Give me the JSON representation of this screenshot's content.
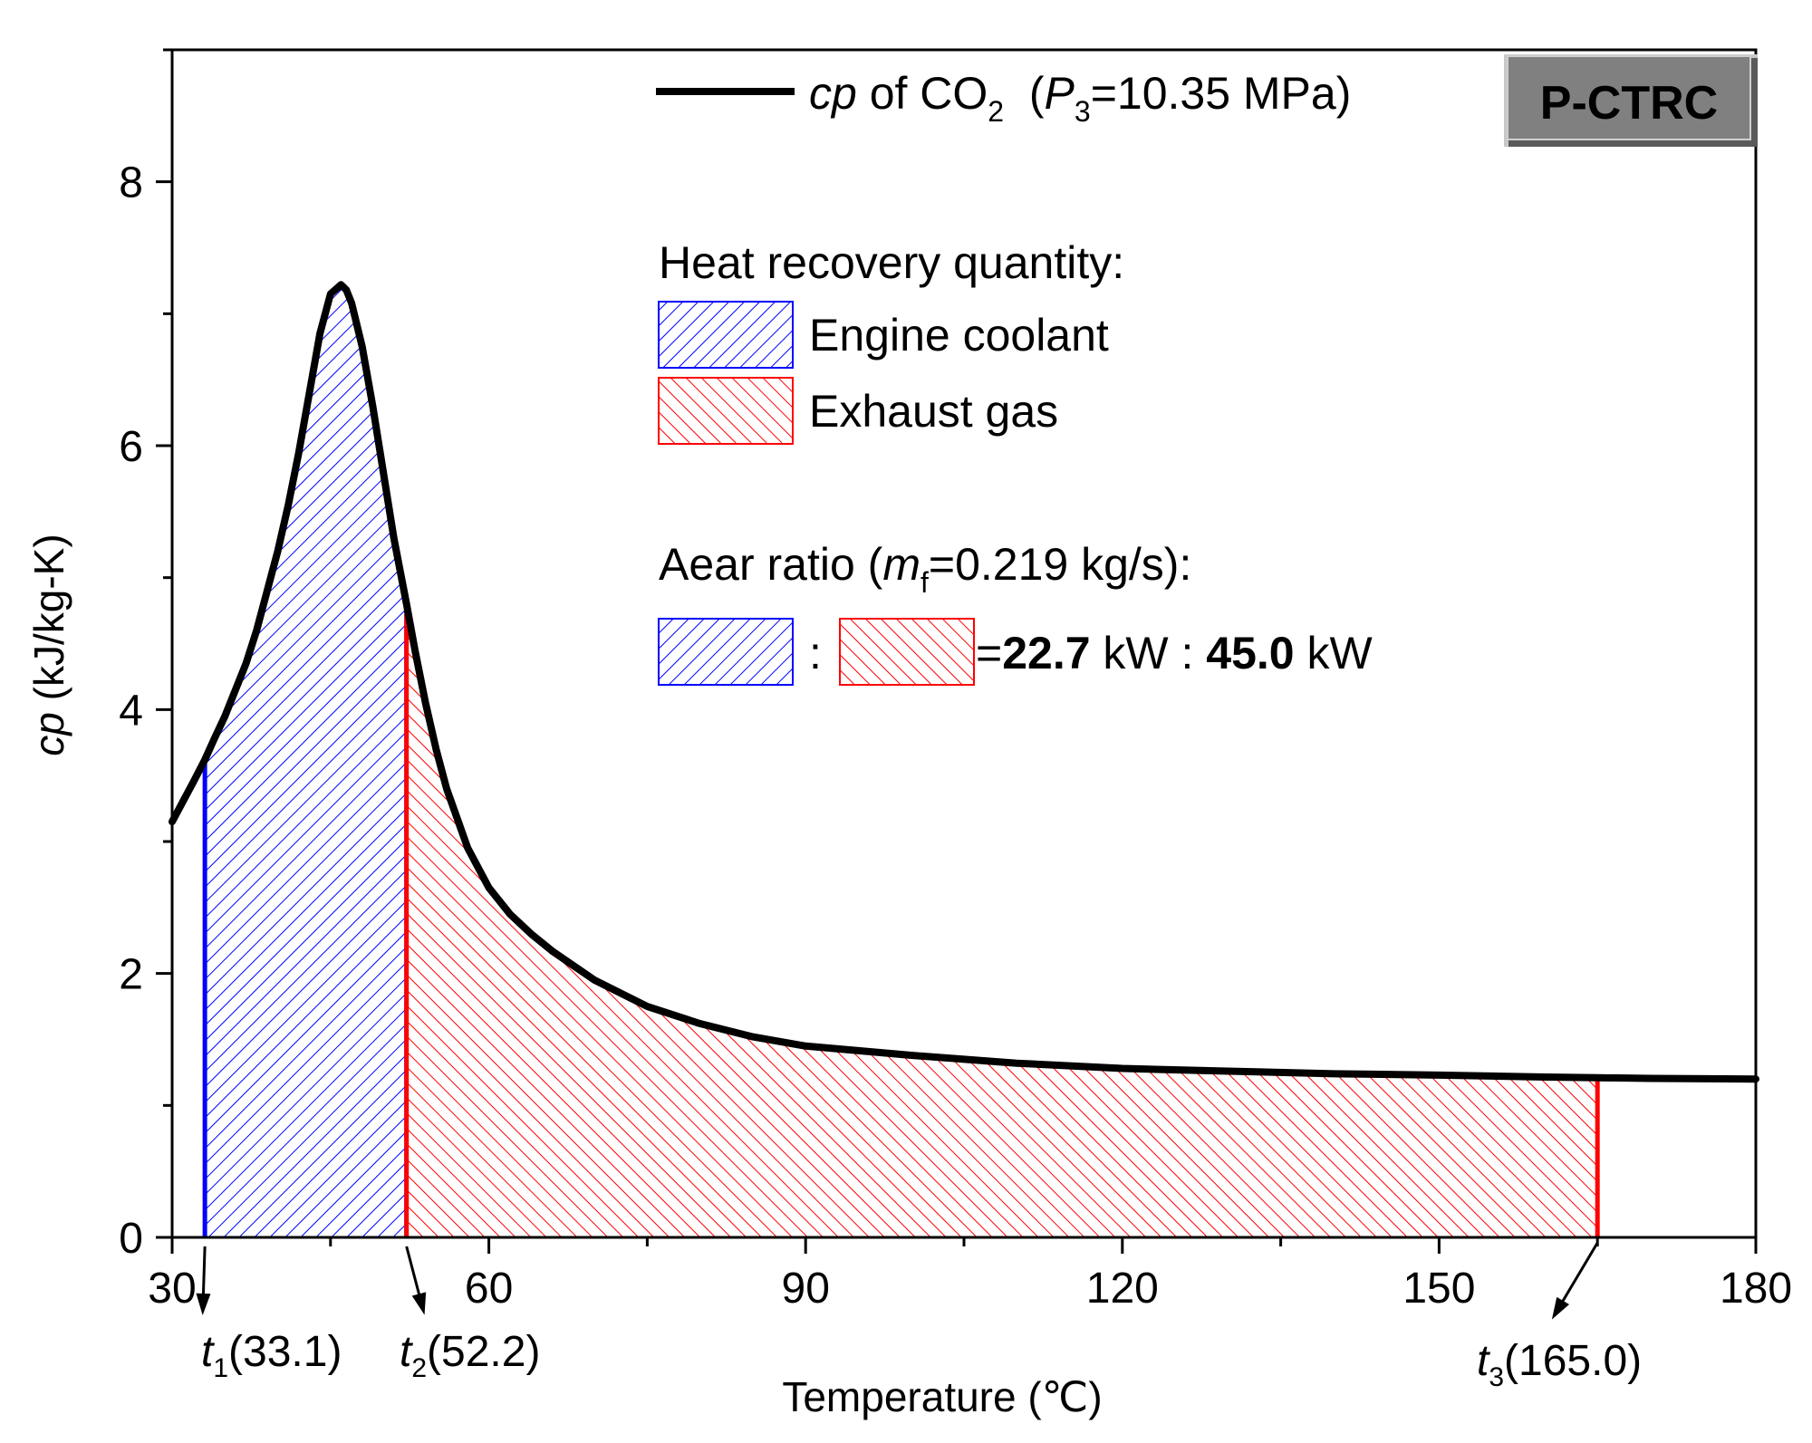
{
  "chart_data": {
    "type": "area",
    "title": "",
    "xlabel": "Temperature (℃)",
    "ylabel_italic": "cp",
    "ylabel_rest": " (kJ/kg-K)",
    "xlim": [
      30,
      180
    ],
    "ylim": [
      0,
      9
    ],
    "x_ticks": [
      30,
      60,
      90,
      120,
      150,
      180
    ],
    "y_ticks": [
      0,
      2,
      4,
      6,
      8
    ],
    "x_minor_step": 15,
    "y_minor_step": 1,
    "grid": false,
    "legend_position": "top",
    "series": [
      {
        "name": "cp of CO2 (P3=10.35 MPa)",
        "color": "#000000",
        "x": [
          30,
          31,
          32,
          33.1,
          34,
          35,
          36,
          37,
          38,
          39,
          40,
          41,
          42,
          43,
          44,
          45,
          46,
          46.5,
          47,
          48,
          49,
          50,
          51,
          52.2,
          53,
          54,
          55,
          56,
          58,
          60,
          62,
          64,
          66,
          68,
          70,
          75,
          80,
          85,
          90,
          100,
          110,
          120,
          130,
          140,
          150,
          160,
          165,
          170,
          180
        ],
        "y": [
          3.15,
          3.3,
          3.45,
          3.62,
          3.78,
          3.95,
          4.15,
          4.35,
          4.6,
          4.9,
          5.2,
          5.55,
          5.95,
          6.4,
          6.85,
          7.15,
          7.22,
          7.18,
          7.08,
          6.75,
          6.3,
          5.8,
          5.3,
          4.8,
          4.45,
          4.05,
          3.7,
          3.4,
          2.95,
          2.65,
          2.45,
          2.3,
          2.17,
          2.06,
          1.95,
          1.75,
          1.62,
          1.52,
          1.45,
          1.38,
          1.32,
          1.28,
          1.26,
          1.24,
          1.23,
          1.215,
          1.21,
          1.205,
          1.2
        ]
      }
    ],
    "regions": [
      {
        "name": "Engine coolant",
        "x_start": 33.1,
        "x_end": 52.2,
        "color": "#0000ff",
        "hatch": "forward"
      },
      {
        "name": "Exhaust gas",
        "x_start": 52.2,
        "x_end": 165.0,
        "color": "#ff0000",
        "hatch": "backward"
      }
    ],
    "markers": [
      {
        "label_var": "t",
        "label_sub": "1",
        "label_val": "(33.1)",
        "x": 33.1
      },
      {
        "label_var": "t",
        "label_sub": "2",
        "label_val": "(52.2)",
        "x": 52.2
      },
      {
        "label_var": "t",
        "label_sub": "3",
        "label_val": "(165.0)",
        "x": 165.0
      }
    ]
  },
  "legend": {
    "line_label_cp": "cp",
    "line_label_of": " of CO",
    "line_label_sub2": "2",
    "line_label_open": "  (",
    "line_label_P": "P",
    "line_label_sub3": "3",
    "line_label_rest": "=10.35 MPa)",
    "heat_title": "Heat recovery quantity:",
    "coolant_label": "Engine coolant",
    "exhaust_label": "Exhaust gas",
    "ratio_title_pre": "Aear ratio (",
    "ratio_title_m": "m",
    "ratio_title_sub": "f",
    "ratio_title_post": "=0.219 kg/s):",
    "ratio_colon": ":",
    "ratio_eq": "=",
    "ratio_val1": "22.7",
    "ratio_unit1": " kW : ",
    "ratio_val2": "45.0",
    "ratio_unit2": " kW"
  },
  "badge": {
    "text": "P-CTRC",
    "color": "#808080"
  }
}
